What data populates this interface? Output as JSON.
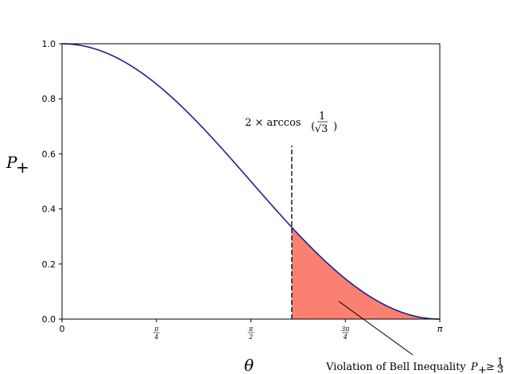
{
  "chart_data": {
    "type": "line",
    "xlabel": "θ",
    "ylabel": "P+",
    "xlim": [
      0,
      3.14159265
    ],
    "ylim": [
      0,
      1.0
    ],
    "x_ticks": [
      {
        "value": 0,
        "label": "0",
        "kind": "plain"
      },
      {
        "value": 0.785398,
        "num": "π",
        "den": "4",
        "kind": "frac"
      },
      {
        "value": 1.570796,
        "num": "π",
        "den": "2",
        "kind": "frac"
      },
      {
        "value": 2.356194,
        "num": "3π",
        "den": "4",
        "kind": "frac"
      },
      {
        "value": 3.141593,
        "label": "π",
        "kind": "plain"
      }
    ],
    "y_ticks": [
      {
        "value": 0.0,
        "label": "0.0"
      },
      {
        "value": 0.2,
        "label": "0.2"
      },
      {
        "value": 0.4,
        "label": "0.4"
      },
      {
        "value": 0.6,
        "label": "0.6"
      },
      {
        "value": 0.8,
        "label": "0.8"
      },
      {
        "value": 1.0,
        "label": "1.0"
      }
    ],
    "series": [
      {
        "function": "cos^2(x/2)",
        "color": "#1f1f8f",
        "x_range": [
          0,
          3.14159265
        ]
      }
    ],
    "threshold_line": {
      "x": 1.910633,
      "y_top": 0.63,
      "style": "dashed"
    },
    "threshold_label": "2 × arccos (1/√3)",
    "shaded_region": {
      "x_from": 1.910633,
      "x_to": 3.14159265,
      "color": "#fa8072"
    },
    "annotation": "Violation of Bell Inequality P+ ≥ 1/3",
    "annotation_arrow_target": {
      "x": 2.3,
      "y": 0.065
    }
  }
}
